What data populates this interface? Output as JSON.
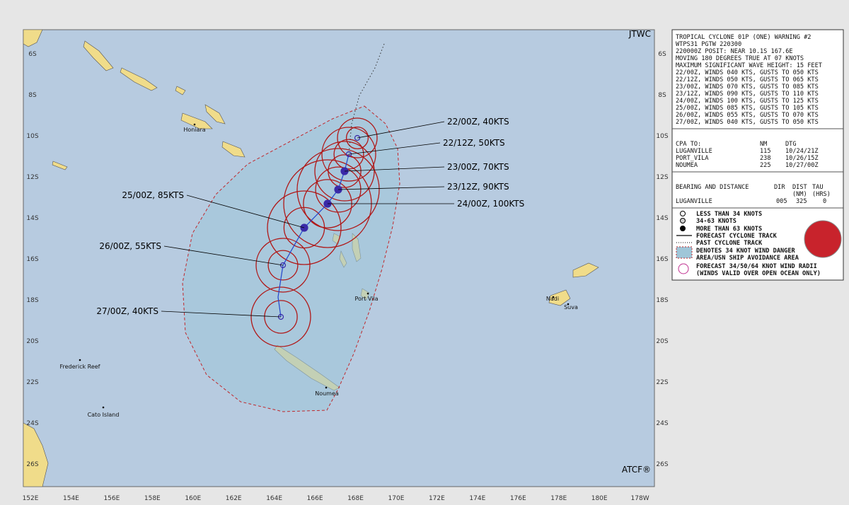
{
  "header": {
    "agency": "JTWC",
    "footer": "ATCF®"
  },
  "warning": {
    "lines": [
      "TROPICAL CYCLONE 01P (ONE) WARNING #2",
      "WTPS31 PGTW 220300",
      "220000Z POSIT: NEAR 10.1S 167.6E",
      "MOVING 180 DEGREES TRUE AT 07 KNOTS",
      "MAXIMUM SIGNIFICANT WAVE HEIGHT: 15 FEET",
      "22/00Z, WINDS 040 KTS, GUSTS TO 050 KTS",
      "22/12Z, WINDS 050 KTS, GUSTS TO 065 KTS",
      "23/00Z, WINDS 070 KTS, GUSTS TO 085 KTS",
      "23/12Z, WINDS 090 KTS, GUSTS TO 110 KTS",
      "24/00Z, WINDS 100 KTS, GUSTS TO 125 KTS",
      "25/00Z, WINDS 085 KTS, GUSTS TO 105 KTS",
      "26/00Z, WINDS 055 KTS, GUSTS TO 070 KTS",
      "27/00Z, WINDS 040 KTS, GUSTS TO 050 KTS"
    ]
  },
  "cpa": {
    "header": [
      "CPA TO:",
      "NM",
      "DTG"
    ],
    "rows": [
      [
        "LUGANVILLE",
        "115",
        "10/24/21Z"
      ],
      [
        "PORT_VILA",
        "238",
        "10/26/15Z"
      ],
      [
        "NOUMEA",
        "225",
        "10/27/00Z"
      ]
    ]
  },
  "bearing": {
    "header": [
      "BEARING AND DISTANCE",
      "DIR",
      "DIST",
      "TAU"
    ],
    "units": [
      "(NM)",
      "(HRS)"
    ],
    "rows": [
      [
        "LUGANVILLE",
        "005",
        "325",
        "0"
      ]
    ]
  },
  "legend": [
    "LESS THAN 34 KNOTS",
    "34-63 KNOTS",
    "MORE THAN 63 KNOTS",
    "FORECAST CYCLONE TRACK",
    "PAST CYCLONE TRACK",
    "DENOTES 34 KNOT WIND DANGER",
    "AREA/USN SHIP AVOIDANCE AREA",
    "FORECAST 34/50/64 KNOT WIND RADII",
    "(WINDS VALID OVER OPEN OCEAN ONLY)"
  ],
  "map": {
    "lat_labels": [
      "6S",
      "8S",
      "10S",
      "12S",
      "14S",
      "16S",
      "18S",
      "20S",
      "22S",
      "24S",
      "26S"
    ],
    "lon_labels": [
      "152E",
      "154E",
      "156E",
      "158E",
      "160E",
      "162E",
      "164E",
      "166E",
      "168E",
      "170E",
      "172E",
      "174E",
      "176E",
      "178E",
      "180E",
      "178W"
    ],
    "places": [
      "Honiara",
      "Port Vila",
      "Nadi",
      "Suva",
      "Noumea",
      "Frederick Reef",
      "Cato Island"
    ],
    "forecasts": [
      "22/00Z, 40KTS",
      "22/12Z, 50KTS",
      "23/00Z, 70KTS",
      "23/12Z, 90KTS",
      "24/00Z, 100KTS",
      "25/00Z, 85KTS",
      "26/00Z, 55KTS",
      "27/00Z, 40KTS"
    ]
  }
}
